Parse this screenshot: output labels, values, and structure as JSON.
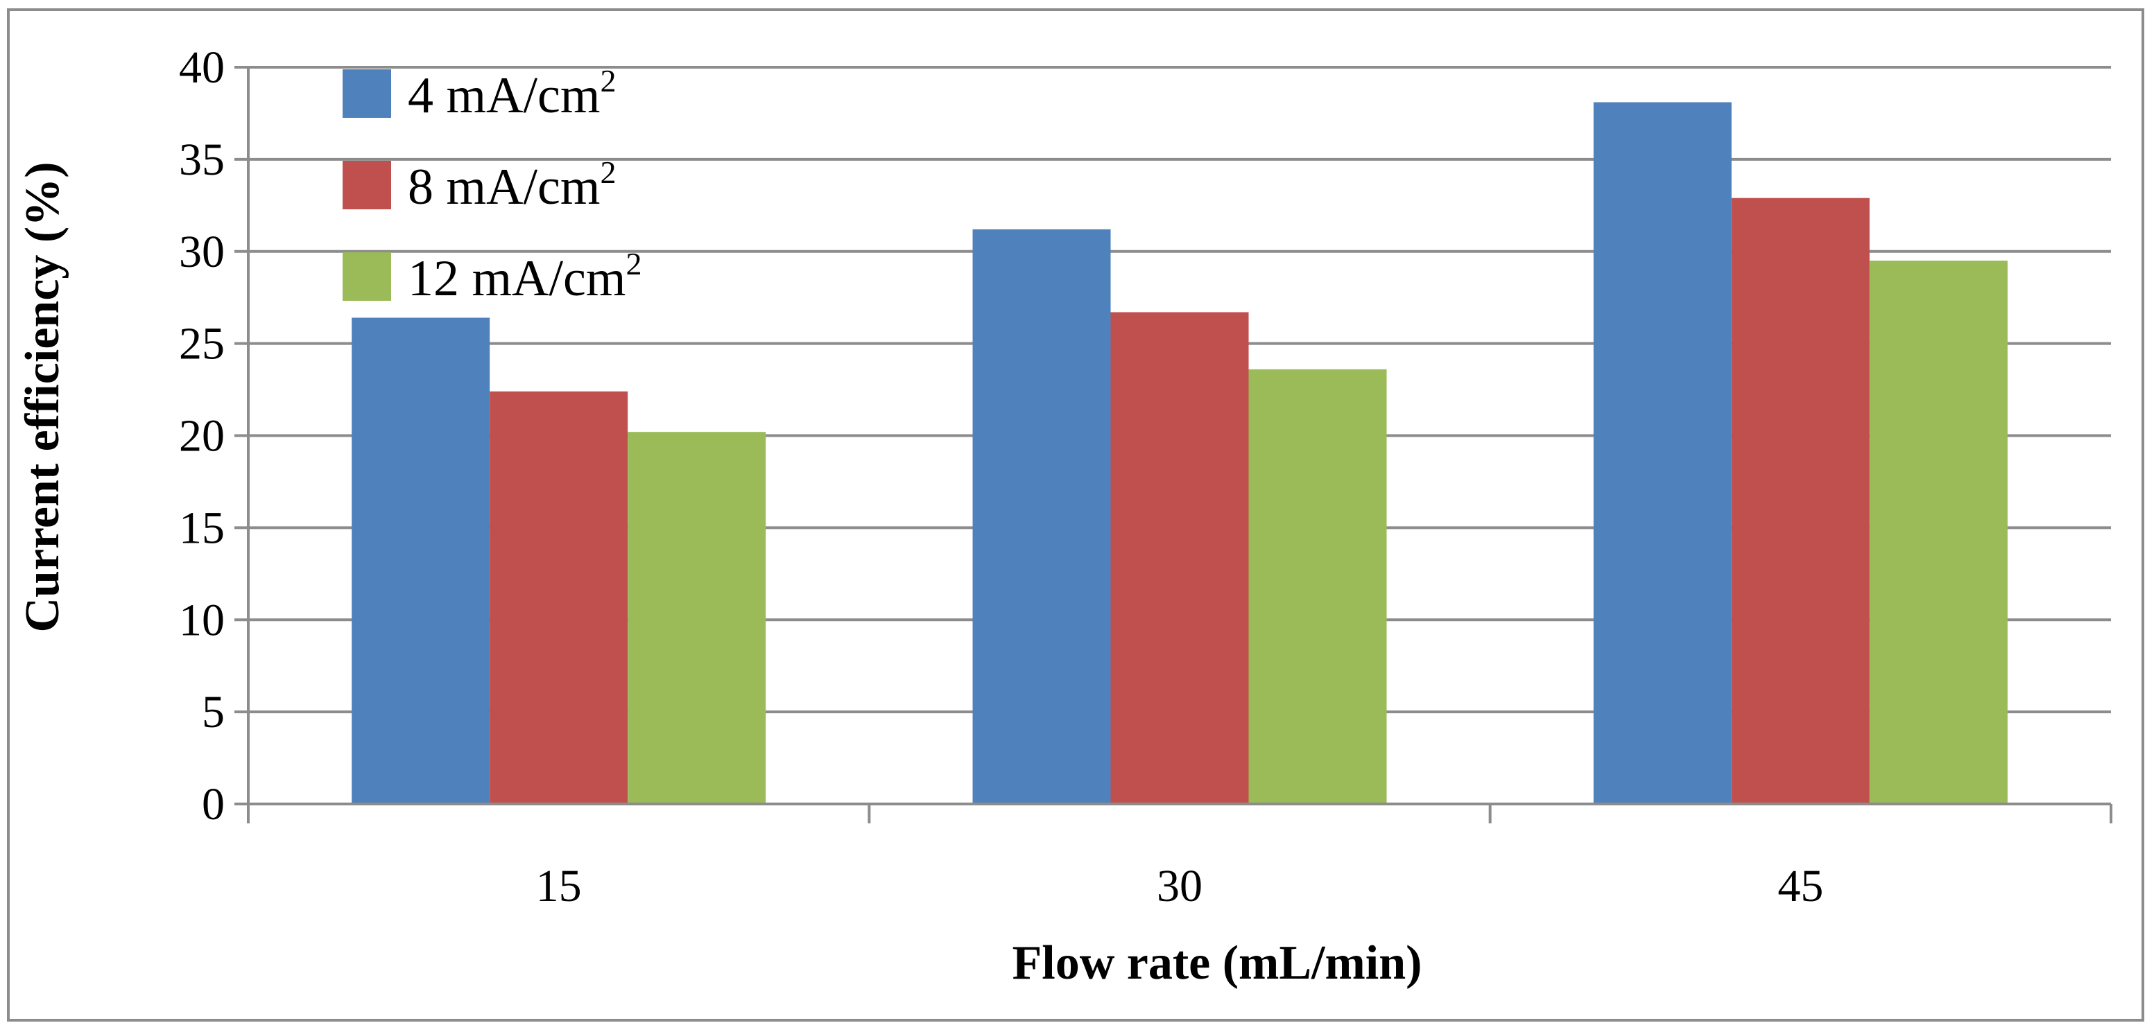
{
  "chart_data": {
    "type": "bar",
    "title": "",
    "xlabel": "Flow rate (mL/min)",
    "ylabel": "Current efficiency (%)",
    "categories": [
      "15",
      "30",
      "45"
    ],
    "ylim": [
      0,
      40
    ],
    "yticks": [
      0,
      5,
      10,
      15,
      20,
      25,
      30,
      35,
      40
    ],
    "grid": true,
    "legend_position": "top-left",
    "series": [
      {
        "name": "4 mA/cm²",
        "name_base": "4 mA/cm",
        "name_sup": "2",
        "color": "#4f81bd",
        "values": [
          26.4,
          31.2,
          38.1
        ]
      },
      {
        "name": "8 mA/cm²",
        "name_base": "8 mA/cm",
        "name_sup": "2",
        "color": "#c0504d",
        "values": [
          22.4,
          26.7,
          32.9
        ]
      },
      {
        "name": "12 mA/cm²",
        "name_base": "12 mA/cm",
        "name_sup": "2",
        "color": "#9bbb59",
        "values": [
          20.2,
          23.6,
          29.5
        ]
      }
    ]
  }
}
